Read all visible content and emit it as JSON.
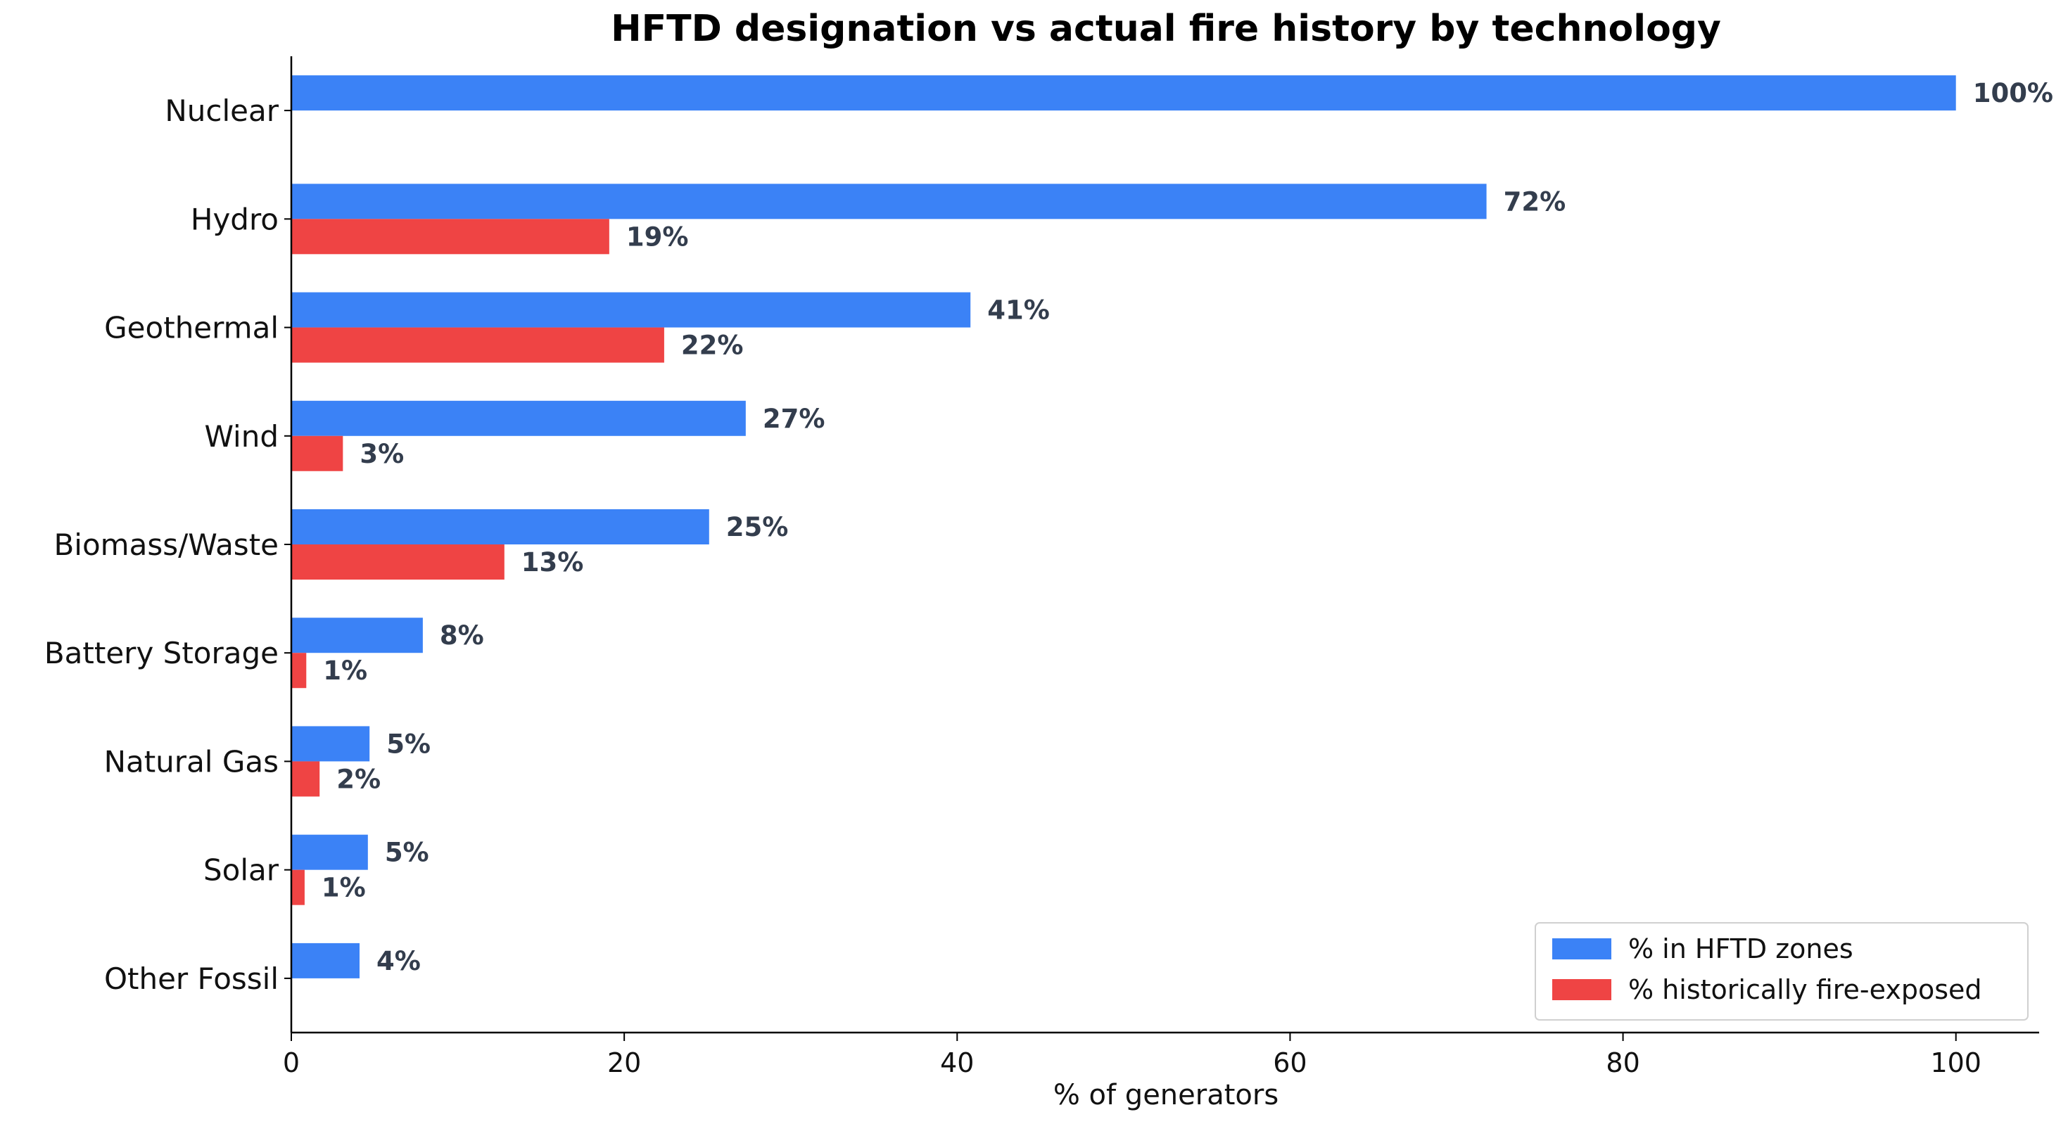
{
  "chart_data": {
    "type": "bar",
    "orientation": "horizontal",
    "title": "HFTD designation vs actual fire history by technology",
    "xlabel": "% of generators",
    "ylabel": "",
    "xlim": [
      0,
      105
    ],
    "xticks": [
      0,
      20,
      40,
      60,
      80,
      100
    ],
    "categories": [
      "Nuclear",
      "Hydro",
      "Geothermal",
      "Wind",
      "Biomass/Waste",
      "Battery Storage",
      "Natural Gas",
      "Solar",
      "Other Fossil"
    ],
    "series": [
      {
        "name": "% in HFTD zones",
        "color": "#3b82f6",
        "values": [
          100,
          71.8,
          40.8,
          27.3,
          25.1,
          7.9,
          4.7,
          4.6,
          4.1
        ],
        "labels": [
          "100%",
          "72%",
          "41%",
          "27%",
          "25%",
          "8%",
          "5%",
          "5%",
          "4%"
        ]
      },
      {
        "name": "% historically fire-exposed",
        "color": "#ef4444",
        "values": [
          0,
          19.1,
          22.4,
          3.1,
          12.8,
          0.9,
          1.7,
          0.8,
          0
        ],
        "labels": [
          "",
          "19%",
          "22%",
          "3%",
          "13%",
          "1%",
          "2%",
          "1%",
          ""
        ]
      }
    ],
    "grid": false,
    "legend_position": "bottom-right"
  }
}
